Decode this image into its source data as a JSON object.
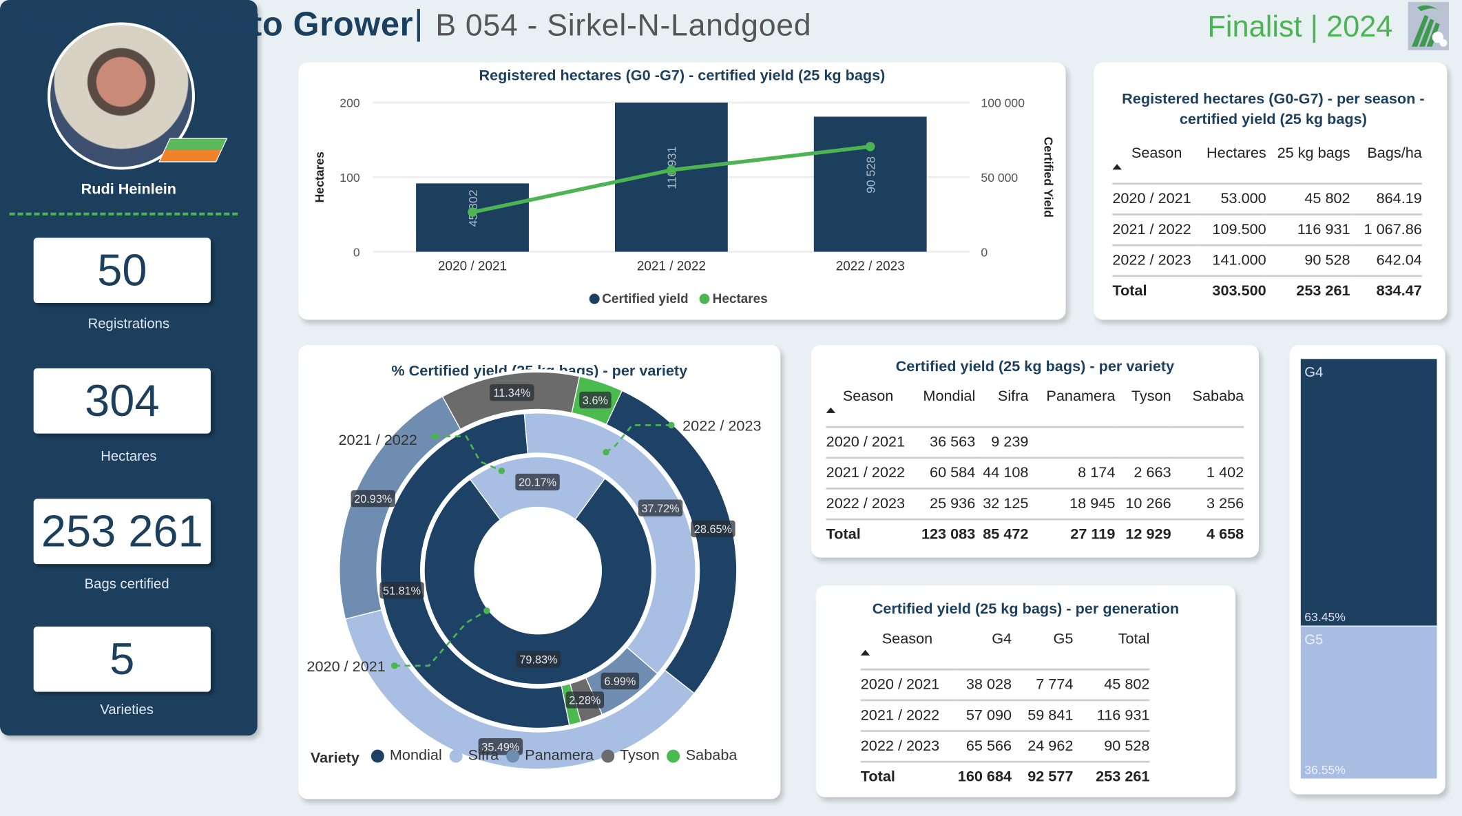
{
  "header": {
    "title": "Top Seed Potato Grower",
    "separator": "|",
    "subtitle": "B 054 - Sirkel-N-Landgoed",
    "finalist": "Finalist | 2024"
  },
  "profile": {
    "name": "Rudi Heinlein",
    "kpis": [
      {
        "value": "50",
        "label": "Registrations"
      },
      {
        "value": "304",
        "label": "Hectares"
      },
      {
        "value": "253 261",
        "label": "Bags certified"
      },
      {
        "value": "5",
        "label": "Varieties"
      }
    ]
  },
  "colors": {
    "navy": "#1d3f5e",
    "green": "#4db453",
    "Mondial": "#1d4266",
    "Sifra": "#a8bfe3",
    "Panamera": "#6f8db0",
    "Tyson": "#6b6b6b",
    "Sababa": "#4cbb4f"
  },
  "chart_data": [
    {
      "type": "bar",
      "title": "Registered hectares (G0 -G7) - certified yield (25 kg bags)",
      "categories": [
        "2020 / 2021",
        "2021 / 2022",
        "2022 / 2023"
      ],
      "series": [
        {
          "name": "Certified yield",
          "type": "bar",
          "axis": "right",
          "values": [
            45802,
            116931,
            90528
          ],
          "labels": [
            "45 802",
            "116 931",
            "90 528"
          ]
        },
        {
          "name": "Hectares",
          "type": "line",
          "axis": "left",
          "values": [
            53,
            109.5,
            141
          ]
        }
      ],
      "ylabel": "Hectares",
      "y2label": "Certified Yield",
      "ylim": [
        0,
        200
      ],
      "y2lim": [
        0,
        100000
      ],
      "yticks": [
        "0",
        "100",
        "200"
      ],
      "y2ticks": [
        "0",
        "50 000",
        "100 000"
      ],
      "legend": "bottom"
    },
    {
      "type": "pie",
      "subtype": "multi-ring donut",
      "title": "% Certified yield (25 kg bags) - per variety",
      "legend_title": "Variety",
      "legend": "bottom",
      "varieties": [
        "Mondial",
        "Sifra",
        "Panamera",
        "Tyson",
        "Sababa"
      ],
      "rings": [
        {
          "season": "2020 / 2021",
          "values": [
            79.83,
            20.17,
            0,
            0,
            0
          ]
        },
        {
          "season": "2021 / 2022",
          "values": [
            51.81,
            37.72,
            6.99,
            2.28,
            1.2
          ]
        },
        {
          "season": "2022 / 2023",
          "values": [
            28.65,
            35.49,
            20.93,
            11.34,
            3.6
          ]
        }
      ]
    },
    {
      "type": "bar",
      "subtype": "100% stacked",
      "categories": [
        "G4",
        "G5"
      ],
      "values": [
        63.45,
        36.55
      ],
      "labels": [
        "63.45%",
        "36.55%"
      ]
    }
  ],
  "season_table": {
    "title": "Registered hectares (G0-G7) - per season - certified yield (25 kg bags)",
    "title_line1": "Registered hectares (G0-G7) - per season -",
    "title_line2": "certified yield (25 kg bags)",
    "columns": [
      "Season",
      "Hectares",
      "25 kg bags",
      "Bags/ha"
    ],
    "rows": [
      [
        "2020 / 2021",
        "53.000",
        "45 802",
        "864.19"
      ],
      [
        "2021 / 2022",
        "109.500",
        "116 931",
        "1 067.86"
      ],
      [
        "2022 / 2023",
        "141.000",
        "90 528",
        "642.04"
      ]
    ],
    "total": [
      "Total",
      "303.500",
      "253 261",
      "834.47"
    ]
  },
  "variety_table": {
    "title": "Certified yield (25 kg bags) - per variety",
    "columns": [
      "Season",
      "Mondial",
      "Sifra",
      "Panamera",
      "Tyson",
      "Sababa"
    ],
    "rows": [
      [
        "2020 / 2021",
        "36 563",
        "9 239",
        "",
        "",
        ""
      ],
      [
        "2021 / 2022",
        "60 584",
        "44 108",
        "8 174",
        "2 663",
        "1 402"
      ],
      [
        "2022 / 2023",
        "25 936",
        "32 125",
        "18 945",
        "10 266",
        "3 256"
      ]
    ],
    "total": [
      "Total",
      "123 083",
      "85 472",
      "27 119",
      "12 929",
      "4 658"
    ]
  },
  "generation_table": {
    "title": "Certified yield (25 kg bags) - per generation",
    "columns": [
      "Season",
      "G4",
      "G5",
      "Total"
    ],
    "rows": [
      [
        "2020 / 2021",
        "38 028",
        "7 774",
        "45 802"
      ],
      [
        "2021 / 2022",
        "57 090",
        "59 841",
        "116 931"
      ],
      [
        "2022 / 2023",
        "65 566",
        "24 962",
        "90 528"
      ]
    ],
    "total": [
      "Total",
      "160 684",
      "92 577",
      "253 261"
    ]
  }
}
